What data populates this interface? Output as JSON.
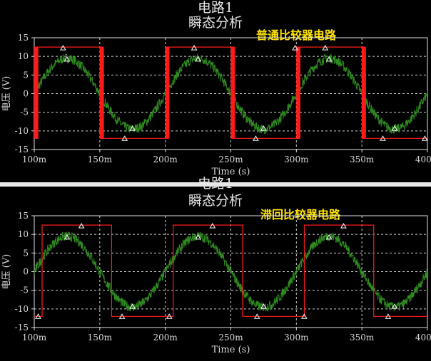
{
  "chart_data": [
    {
      "type": "line",
      "title": "电路1",
      "subtitle": "瞬态分析",
      "annotation": "普通比较器电路",
      "xlabel": "Time (s)",
      "ylabel": "电压 (V)",
      "xlim": [
        100,
        400
      ],
      "x_unit": "ms",
      "ylim": [
        -15,
        15
      ],
      "xticks": [
        "100m",
        "150m",
        "200m",
        "250m",
        "300m",
        "350m",
        "400m"
      ],
      "yticks": [
        "15",
        "10",
        "5",
        "0",
        "-5",
        "-10",
        "-15"
      ],
      "grid": true,
      "series": [
        {
          "color": "#2e8b1e",
          "shape": "noisy sine",
          "amplitude": 9.5,
          "period_ms": 100,
          "noise_pp": 2.6,
          "markers": [
            [
              125,
              9.3
            ],
            [
              175,
              -9.3
            ],
            [
              225,
              9.3
            ],
            [
              275,
              -9.3
            ],
            [
              325,
              9.3
            ],
            [
              375,
              -9.3
            ]
          ]
        },
        {
          "color": "#ff1a1a",
          "shape": "comparator output",
          "high": 12.5,
          "low": -12,
          "switch_points": [
            100,
            150,
            200,
            250,
            300,
            350
          ],
          "chatter": true,
          "markers": [
            [
              122,
              12.3
            ],
            [
              169,
              -12
            ],
            [
              222,
              12.3
            ],
            [
              269,
              -12
            ],
            [
              299,
              12.3
            ],
            [
              322,
              12.3
            ],
            [
              366,
              -12
            ],
            [
              398,
              -12
            ]
          ]
        }
      ]
    },
    {
      "type": "line",
      "title": "电路1",
      "subtitle": "瞬态分析",
      "annotation": "滞回比较器电路",
      "xlabel": "Time (s)",
      "ylabel": "电压 (V)",
      "xlim": [
        100,
        400
      ],
      "x_unit": "ms",
      "ylim": [
        -15,
        15
      ],
      "xticks": [
        "100m",
        "150m",
        "200m",
        "250m",
        "300m",
        "350m",
        "400m"
      ],
      "yticks": [
        "15",
        "10",
        "5",
        "0",
        "-5",
        "-10",
        "-15"
      ],
      "grid": true,
      "series": [
        {
          "color": "#2e8b1e",
          "shape": "noisy sine",
          "amplitude": 9.5,
          "period_ms": 100,
          "noise_pp": 2.6,
          "markers": [
            [
              125,
              9.3
            ],
            [
              175,
              -9.3
            ],
            [
              225,
              9.3
            ],
            [
              275,
              -9.3
            ],
            [
              325,
              9.3
            ],
            [
              375,
              -9.3
            ]
          ]
        },
        {
          "color": "#ff1a1a",
          "shape": "comparator output",
          "high": 12.5,
          "low": -12,
          "switch_points": [
            106,
            159,
            206,
            259,
            306,
            359
          ],
          "chatter": false,
          "markers": [
            [
              103,
              -12
            ],
            [
              136,
              12.3
            ],
            [
              167,
              -12
            ],
            [
              203,
              -12
            ],
            [
              236,
              12.3
            ],
            [
              270,
              -12
            ],
            [
              306,
              -12
            ],
            [
              336,
              12.3
            ],
            [
              370,
              -12
            ]
          ]
        }
      ]
    }
  ]
}
